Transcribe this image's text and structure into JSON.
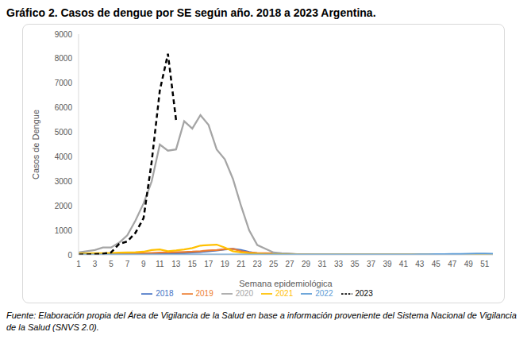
{
  "chart_data": {
    "type": "line",
    "title": "Gráfico 2. Casos de dengue por SE según año. 2018 a 2023 Argentina.",
    "x_label": "Semana epidemiológica",
    "y_label": "Casos de Dengue",
    "source": "Fuente: Elaboración propia del Área de Vigilancia de la Salud en base a información proveniente del Sistema Nacional de Vigilancia de la Salud (SNVS 2.0).",
    "x": [
      1,
      2,
      3,
      4,
      5,
      6,
      7,
      8,
      9,
      10,
      11,
      12,
      13,
      14,
      15,
      16,
      17,
      18,
      19,
      20,
      21,
      22,
      23,
      24,
      25,
      26,
      27,
      28,
      29,
      30,
      31,
      32,
      33,
      34,
      35,
      36,
      37,
      38,
      39,
      40,
      41,
      42,
      43,
      44,
      45,
      46,
      47,
      48,
      49,
      50,
      51,
      52
    ],
    "xlim": [
      1,
      52
    ],
    "xticks": [
      1,
      3,
      5,
      7,
      9,
      11,
      13,
      15,
      17,
      19,
      21,
      23,
      25,
      27,
      29,
      31,
      33,
      35,
      37,
      39,
      41,
      43,
      45,
      47,
      49,
      51
    ],
    "ylim": [
      0,
      9000
    ],
    "yticks": [
      0,
      1000,
      2000,
      3000,
      4000,
      5000,
      6000,
      7000,
      8000,
      9000
    ],
    "grid": false,
    "legend": "bottom",
    "marker": "none",
    "series": [
      {
        "name": "2018",
        "color": "#4472c4",
        "line_style": "solid",
        "values": [
          20,
          20,
          20,
          20,
          25,
          30,
          30,
          35,
          40,
          40,
          50,
          60,
          70,
          80,
          100,
          120,
          150,
          180,
          220,
          250,
          200,
          120,
          60,
          40,
          30,
          20,
          15,
          10,
          10,
          10,
          10,
          10,
          10,
          10,
          10,
          10,
          10,
          10,
          10,
          10,
          10,
          10,
          10,
          10,
          10,
          10,
          10,
          10,
          10,
          10,
          10,
          10
        ]
      },
      {
        "name": "2019",
        "color": "#ed7d31",
        "line_style": "solid",
        "values": [
          30,
          30,
          30,
          35,
          40,
          50,
          60,
          60,
          70,
          80,
          90,
          100,
          110,
          120,
          130,
          150,
          180,
          200,
          230,
          250,
          150,
          100,
          80,
          70,
          60,
          50,
          40,
          30,
          20,
          15,
          15,
          15,
          15,
          15,
          15,
          15,
          15,
          15,
          15,
          15,
          15,
          15,
          15,
          15,
          15,
          15,
          15,
          15,
          15,
          15,
          15,
          15
        ]
      },
      {
        "name": "2020",
        "color": "#a5a5a5",
        "line_style": "solid",
        "values": [
          100,
          150,
          200,
          300,
          300,
          500,
          800,
          1400,
          2100,
          3000,
          4500,
          4250,
          4300,
          5450,
          5150,
          5700,
          5300,
          4300,
          3900,
          3100,
          2000,
          1000,
          400,
          250,
          100,
          70,
          50,
          20,
          10,
          10,
          10,
          10,
          10,
          10,
          10,
          10,
          10,
          10,
          10,
          10,
          10,
          10,
          10,
          10,
          10,
          10,
          10,
          10,
          10,
          10,
          10,
          10
        ]
      },
      {
        "name": "2021",
        "color": "#ffc000",
        "line_style": "solid",
        "values": [
          60,
          60,
          70,
          70,
          80,
          90,
          100,
          110,
          130,
          200,
          220,
          150,
          180,
          220,
          280,
          380,
          400,
          420,
          300,
          150,
          100,
          70,
          50,
          40,
          30,
          25,
          20,
          15,
          10,
          10,
          10,
          10,
          10,
          10,
          10,
          10,
          10,
          10,
          10,
          10,
          10,
          10,
          10,
          10,
          10,
          10,
          10,
          10,
          10,
          10,
          10,
          10
        ]
      },
      {
        "name": "2022",
        "color": "#5b9bd5",
        "line_style": "solid",
        "values": [
          20,
          15,
          15,
          15,
          15,
          15,
          15,
          15,
          15,
          15,
          10,
          10,
          10,
          10,
          10,
          10,
          10,
          10,
          10,
          10,
          10,
          10,
          10,
          10,
          10,
          10,
          10,
          10,
          10,
          10,
          10,
          10,
          10,
          10,
          10,
          10,
          10,
          10,
          10,
          10,
          15,
          15,
          20,
          20,
          25,
          30,
          35,
          40,
          45,
          50,
          50,
          45
        ]
      },
      {
        "name": "2023",
        "color": "#000000",
        "line_style": "dashed",
        "values": [
          10,
          20,
          30,
          50,
          100,
          450,
          550,
          900,
          1500,
          3800,
          6700,
          8200,
          5500,
          null,
          null,
          null,
          null,
          null,
          null,
          null,
          null,
          null,
          null,
          null,
          null,
          null,
          null,
          null,
          null,
          null,
          null,
          null,
          null,
          null,
          null,
          null,
          null,
          null,
          null,
          null,
          null,
          null,
          null,
          null,
          null,
          null,
          null,
          null,
          null,
          null,
          null,
          null
        ]
      }
    ]
  }
}
